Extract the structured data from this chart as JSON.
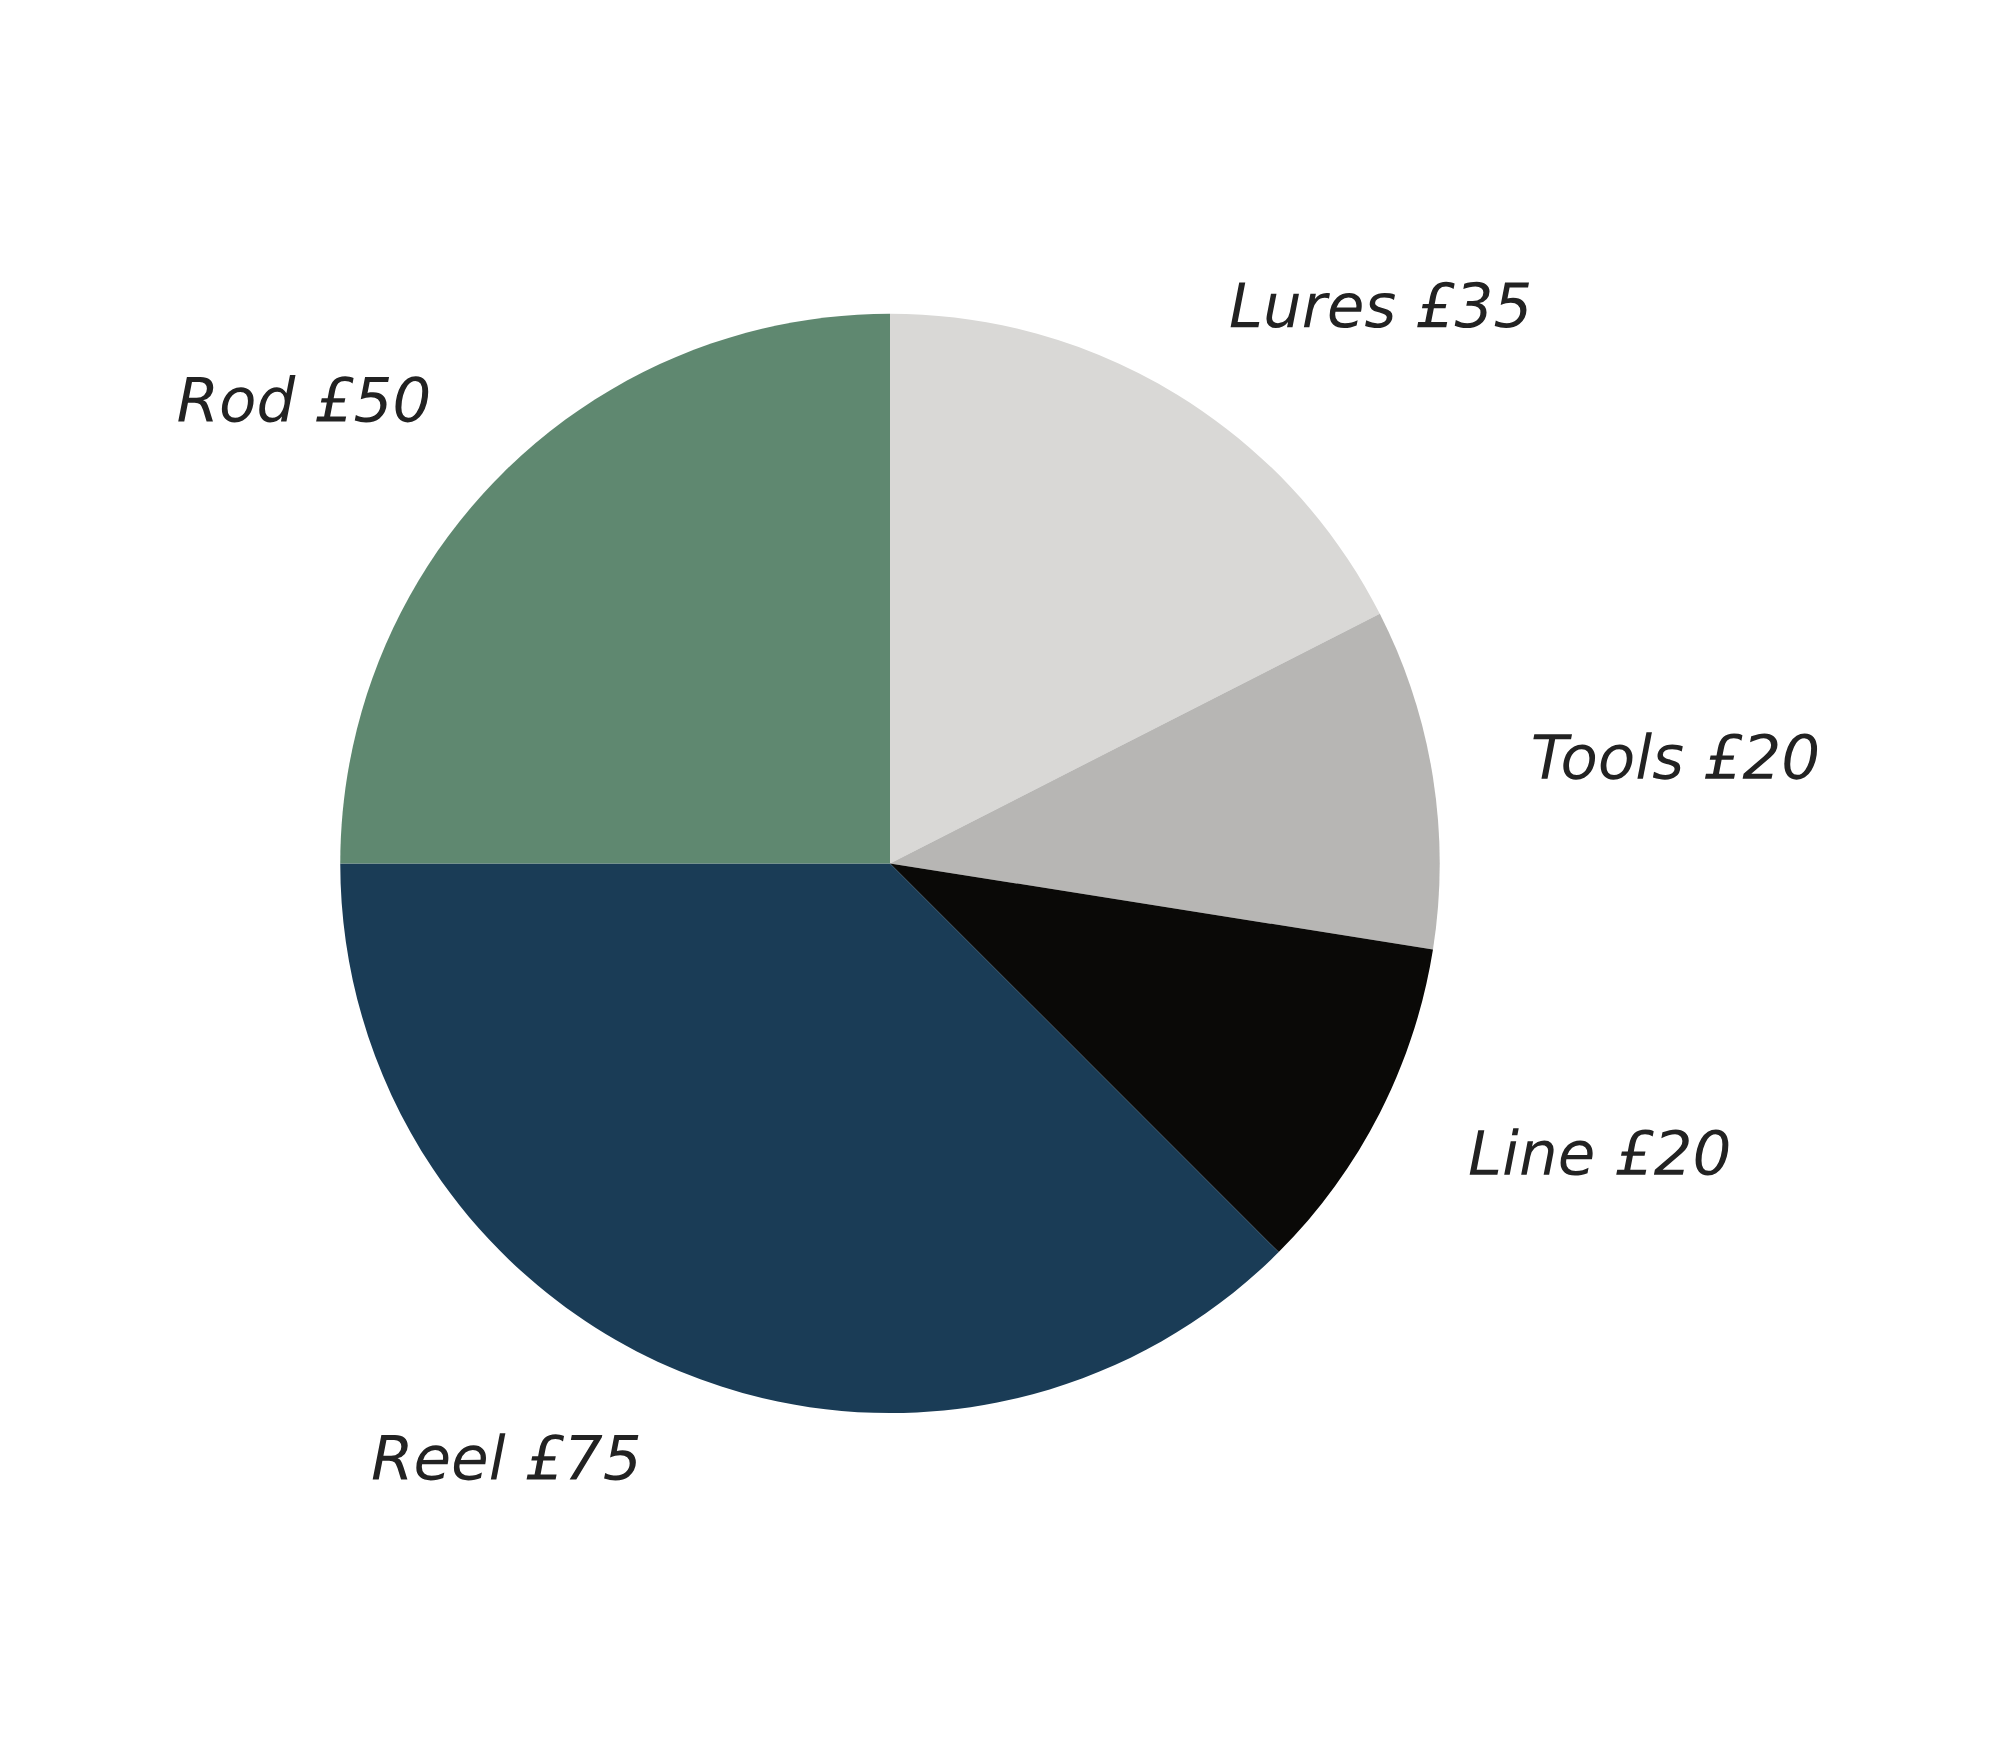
{
  "chart_data": {
    "type": "pie",
    "categories": [
      "Lures",
      "Tools",
      "Line",
      "Reel",
      "Rod"
    ],
    "values": [
      35,
      20,
      20,
      75,
      50
    ],
    "value_labels": [
      "£35",
      "£20",
      "£20",
      "£75",
      "£50"
    ],
    "colors": [
      "#d9d8d6",
      "#b7b6b4",
      "#0a0907",
      "#1a3c56",
      "#5f8870"
    ]
  }
}
